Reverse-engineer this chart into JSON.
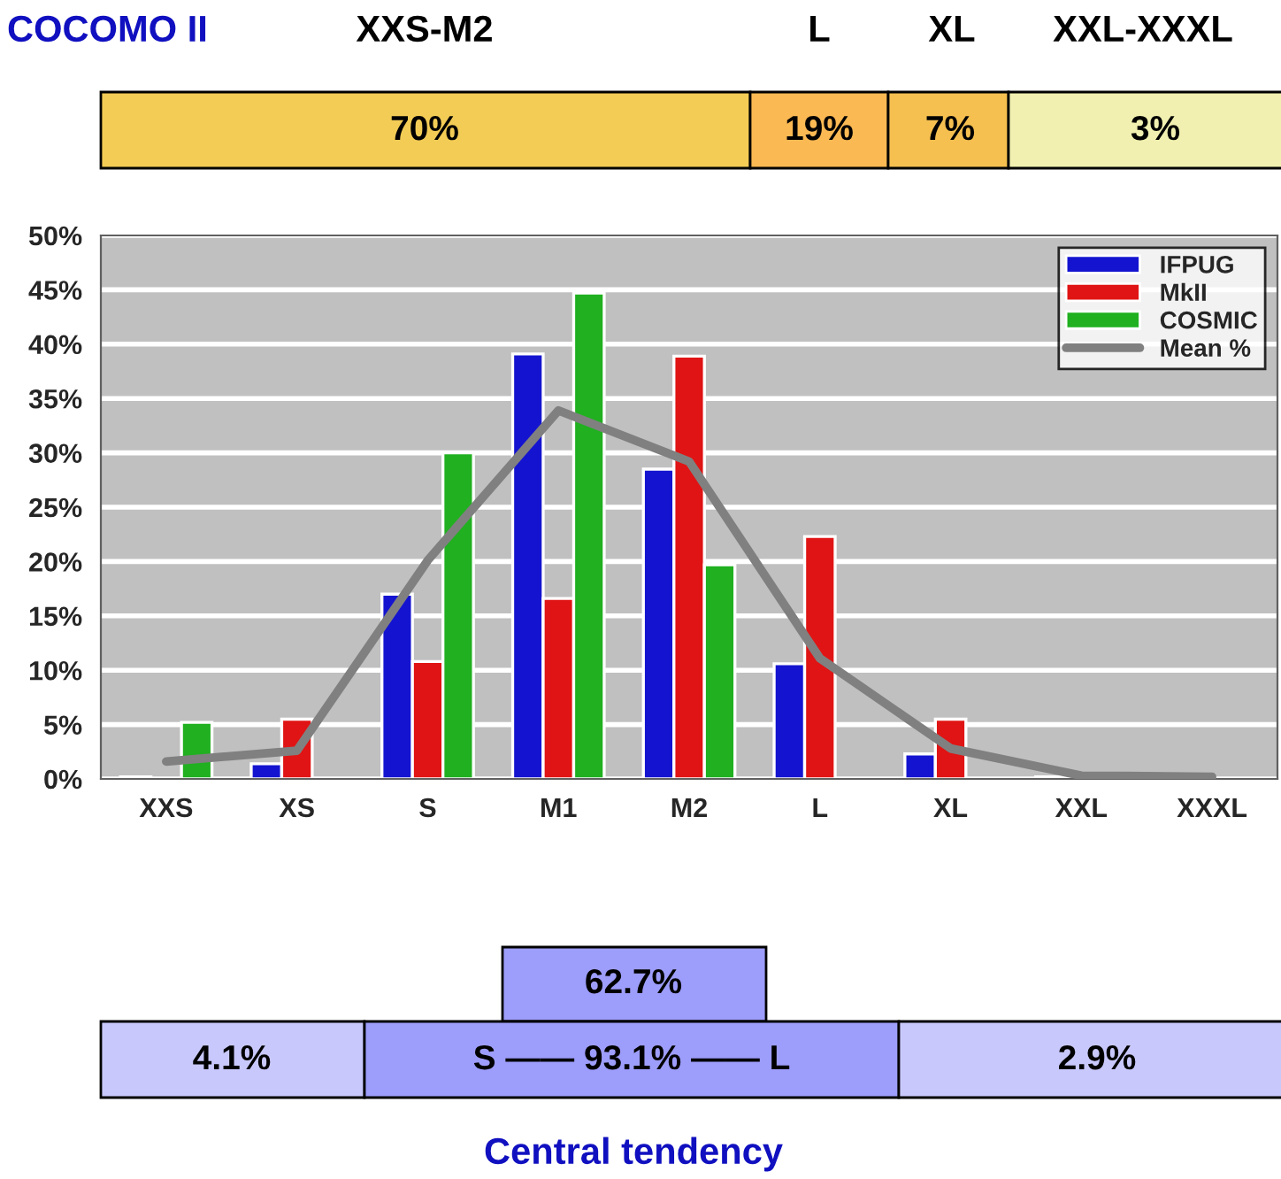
{
  "chart_data": {
    "type": "bar",
    "categories": [
      "XXS",
      "XS",
      "S",
      "M1",
      "M2",
      "L",
      "XL",
      "XXL",
      "XXXL"
    ],
    "series": [
      {
        "name": "IFPUG",
        "color": "#1414d0",
        "values": [
          0.2,
          1.4,
          17,
          39.1,
          28.5,
          10.6,
          2.3,
          0.2,
          0
        ]
      },
      {
        "name": "MkII",
        "color": "#e01414",
        "values": [
          0,
          5.5,
          10.8,
          16.6,
          38.9,
          22.3,
          5.5,
          0,
          0
        ]
      },
      {
        "name": "COSMIC",
        "color": "#20b020",
        "values": [
          5.2,
          0,
          30,
          44.7,
          19.7,
          0,
          0,
          0,
          0
        ]
      },
      {
        "name": "Mean %",
        "type": "line",
        "color": "#808080",
        "values": [
          1.6,
          2.6,
          20.1,
          33.9,
          29.2,
          11.1,
          2.8,
          0.3,
          0.2
        ]
      }
    ],
    "ylim": [
      0,
      50
    ],
    "yticks": [
      {
        "value": 0,
        "label": "0%"
      },
      {
        "value": 5,
        "label": "5%"
      },
      {
        "value": 10,
        "label": "10%"
      },
      {
        "value": 15,
        "label": "15%"
      },
      {
        "value": 20,
        "label": "20%"
      },
      {
        "value": 25,
        "label": "25%"
      },
      {
        "value": 30,
        "label": "30%"
      },
      {
        "value": 35,
        "label": "35%"
      },
      {
        "value": 40,
        "label": "40%"
      },
      {
        "value": 45,
        "label": "45%"
      },
      {
        "value": 50,
        "label": "50%"
      }
    ],
    "grid": "y",
    "legend": "top right",
    "marker": "none",
    "line_style": "solid",
    "annotations": [
      "COCOMO II",
      "XXS-M2",
      "L",
      "XL",
      "XXL-XXXL",
      "70%",
      "19%",
      "7%",
      "3%",
      "62.7%",
      "4.1%",
      "S —— 93.1% —— L",
      "2.9%",
      "Central tendency"
    ]
  }
}
